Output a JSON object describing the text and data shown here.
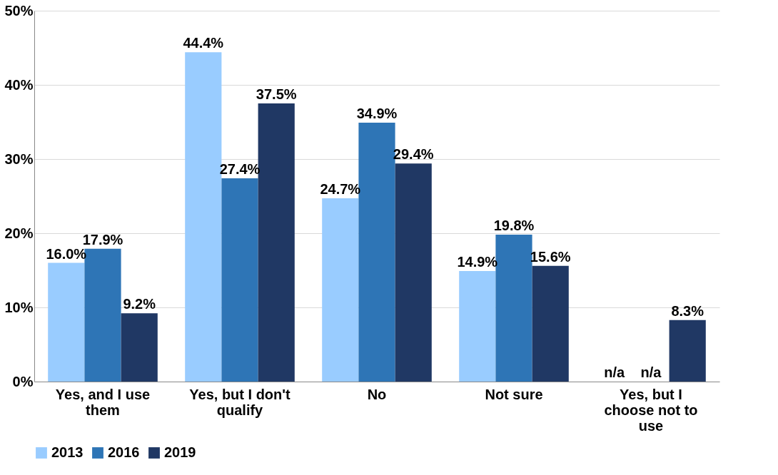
{
  "chart_data": {
    "type": "bar",
    "categories": [
      "Yes, and I use them",
      "Yes, but I don't qualify",
      "No",
      "Not sure",
      "Yes, but I choose not to use"
    ],
    "series": [
      {
        "name": "2013",
        "color": "#99ccff",
        "values": [
          16.0,
          44.4,
          24.7,
          14.9,
          null
        ],
        "value_labels": [
          "16.0%",
          "44.4%",
          "24.7%",
          "14.9%",
          "n/a"
        ]
      },
      {
        "name": "2016",
        "color": "#2e75b6",
        "values": [
          17.9,
          27.4,
          34.9,
          19.8,
          null
        ],
        "value_labels": [
          "17.9%",
          "27.4%",
          "34.9%",
          "19.8%",
          "n/a"
        ]
      },
      {
        "name": "2019",
        "color": "#203864",
        "values": [
          9.2,
          37.5,
          29.4,
          15.6,
          8.3
        ],
        "value_labels": [
          "9.2%",
          "37.5%",
          "29.4%",
          "15.6%",
          "8.3%"
        ]
      }
    ],
    "ylim": [
      0,
      50
    ],
    "yticks": [
      {
        "value": 0,
        "label": "0%"
      },
      {
        "value": 10,
        "label": "10%"
      },
      {
        "value": 20,
        "label": "20%"
      },
      {
        "value": 30,
        "label": "30%"
      },
      {
        "value": 40,
        "label": "40%"
      },
      {
        "value": 50,
        "label": "50%"
      }
    ],
    "grid": "y",
    "legend": "bottom"
  }
}
